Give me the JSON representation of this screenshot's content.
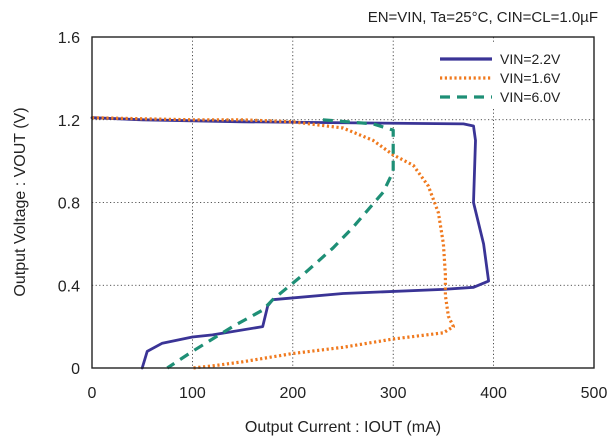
{
  "chart_data": {
    "type": "line",
    "conditions": "EN=VIN, Ta=25°C, CIN=CL=1.0µF",
    "xlabel": "Output Current : IOUT (mA)",
    "ylabel": "Output Voltage : VOUT (V)",
    "xlim": [
      0,
      500
    ],
    "ylim": [
      0,
      1.6
    ],
    "x_ticks": [
      "0",
      "100",
      "200",
      "300",
      "400",
      "500"
    ],
    "y_ticks": [
      "0",
      "0.4",
      "0.8",
      "1.2",
      "1.6"
    ],
    "grid": true,
    "legend_position": "top-right",
    "series": [
      {
        "name": "VIN=2.2V",
        "color": "#3a3496",
        "style": "solid",
        "x": [
          0,
          50,
          150,
          370,
          380,
          382,
          380,
          390,
          395,
          380,
          350,
          250,
          180,
          175,
          170,
          120,
          100,
          70,
          55,
          50
        ],
        "y": [
          1.21,
          1.2,
          1.19,
          1.18,
          1.17,
          1.1,
          0.8,
          0.6,
          0.42,
          0.39,
          0.38,
          0.36,
          0.33,
          0.3,
          0.2,
          0.16,
          0.15,
          0.12,
          0.08,
          0.0
        ]
      },
      {
        "name": "VIN=1.6V",
        "color": "#f07a1f",
        "style": "dotted",
        "x": [
          0,
          100,
          150,
          200,
          250,
          280,
          300,
          320,
          335,
          345,
          350,
          352,
          352,
          355,
          360,
          350,
          300,
          250,
          200,
          150,
          120,
          100
        ],
        "y": [
          1.21,
          1.2,
          1.2,
          1.19,
          1.16,
          1.1,
          1.03,
          0.98,
          0.88,
          0.75,
          0.6,
          0.45,
          0.35,
          0.25,
          0.2,
          0.17,
          0.14,
          0.1,
          0.07,
          0.03,
          0.01,
          0.0
        ]
      },
      {
        "name": "VIN=6.0V",
        "color": "#1e8f76",
        "style": "dashed",
        "x": [
          230,
          280,
          300,
          300,
          290,
          260,
          240,
          210,
          180,
          170,
          140,
          120,
          100,
          75
        ],
        "y": [
          1.2,
          1.18,
          1.15,
          0.95,
          0.85,
          0.68,
          0.58,
          0.45,
          0.33,
          0.28,
          0.2,
          0.14,
          0.08,
          0.0
        ]
      }
    ]
  }
}
